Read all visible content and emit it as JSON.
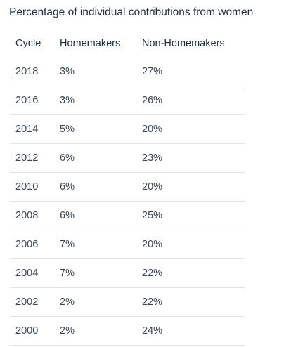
{
  "chart_data": {
    "type": "table",
    "title": "Percentage of individual contributions from women",
    "columns": [
      "Cycle",
      "Homemakers",
      "Non-Homemakers"
    ],
    "rows": [
      [
        "2018",
        "3%",
        "27%"
      ],
      [
        "2016",
        "3%",
        "26%"
      ],
      [
        "2014",
        "5%",
        "20%"
      ],
      [
        "2012",
        "6%",
        "23%"
      ],
      [
        "2010",
        "6%",
        "20%"
      ],
      [
        "2008",
        "6%",
        "25%"
      ],
      [
        "2006",
        "7%",
        "20%"
      ],
      [
        "2004",
        "7%",
        "22%"
      ],
      [
        "2002",
        "2%",
        "22%"
      ],
      [
        "2000",
        "2%",
        "24%"
      ]
    ]
  }
}
